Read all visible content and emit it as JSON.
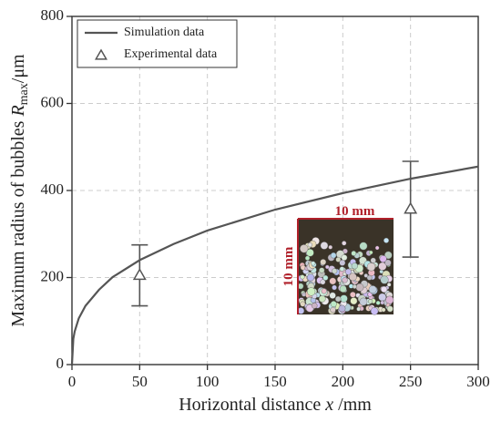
{
  "chart_data": {
    "type": "line",
    "x_label": {
      "prefix": "Horizontal distance ",
      "symbol": "x",
      "suffix": " /mm"
    },
    "y_label": {
      "prefix": "Maximum radius of bubbles ",
      "symbol": "R",
      "subscript": "max",
      "suffix": "/μm"
    },
    "xlim": [
      0,
      300
    ],
    "xticks": [
      0,
      50,
      100,
      150,
      200,
      250,
      300
    ],
    "ylim": [
      0,
      800
    ],
    "yticks": [
      0,
      200,
      400,
      600,
      800
    ],
    "grid": true,
    "legend": "upper left",
    "series": [
      {
        "name": "Simulation data",
        "type": "line",
        "color": "#555555",
        "x": [
          0,
          1,
          2,
          5,
          10,
          20,
          30,
          50,
          75,
          100,
          150,
          200,
          250,
          300
        ],
        "values": [
          0,
          59,
          76,
          106,
          135,
          172,
          201,
          240,
          277,
          308,
          356,
          394,
          427,
          455
        ]
      },
      {
        "name": "Experimental data",
        "type": "scatter",
        "color": "#555555",
        "x": [
          50,
          250
        ],
        "values": [
          205,
          357
        ],
        "errors": [
          70,
          110
        ]
      }
    ],
    "inset": {
      "top_label": "10 mm",
      "left_label": "10 mm"
    }
  }
}
